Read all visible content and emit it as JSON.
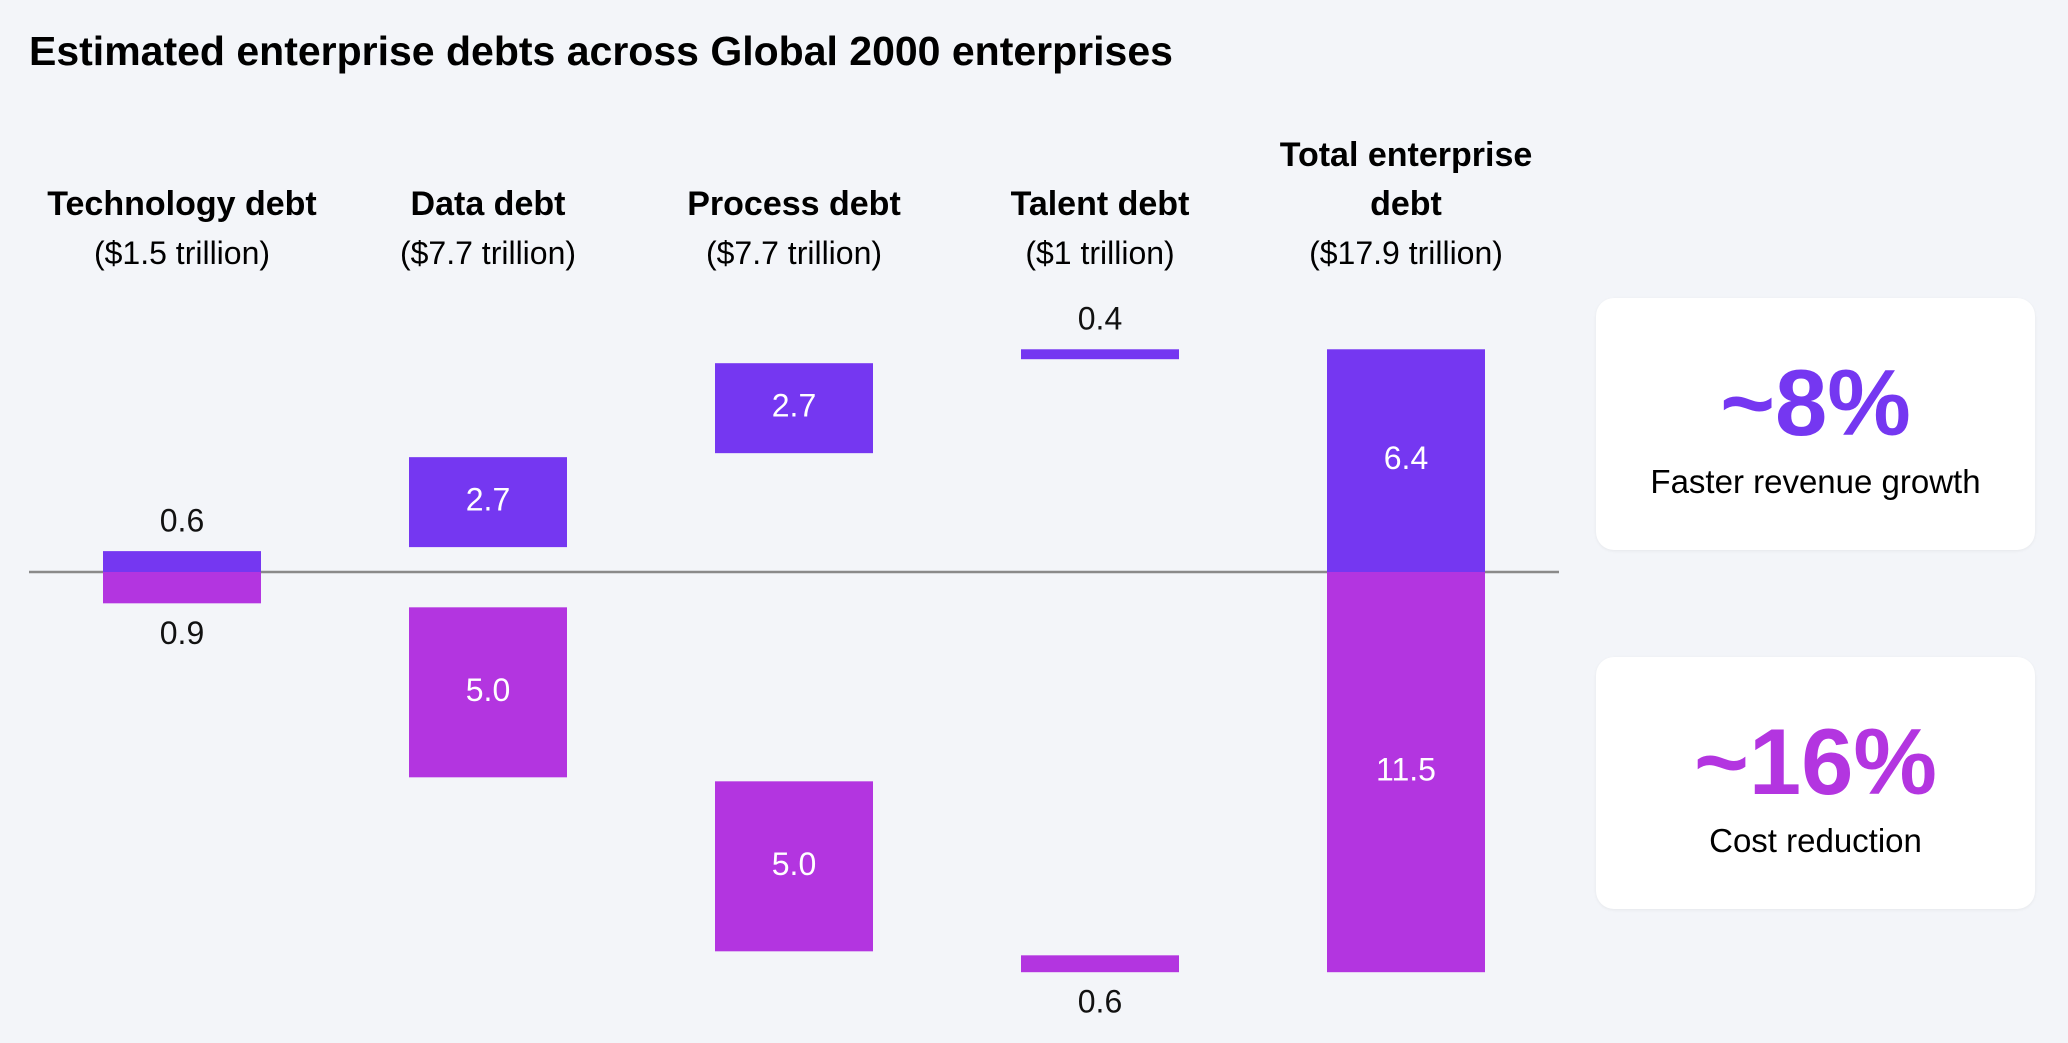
{
  "chart_data": {
    "type": "waterfall",
    "title": "Estimated enterprise debts across Global 2000 enterprises",
    "categories": [
      "Technology debt",
      "Data debt",
      "Process debt",
      "Talent debt",
      "Total enterprise debt"
    ],
    "category_subtitles": [
      "($1.5 trillion)",
      "($7.7 trillion)",
      "($7.7 trillion)",
      "($1 trillion)",
      "($17.9 trillion)"
    ],
    "series": [
      {
        "color": "#7537f1",
        "values": [
          0.6,
          2.7,
          2.7,
          0.4,
          6.4
        ],
        "value_labels": [
          "0.6",
          "2.7",
          "2.7",
          "0.4",
          "6.4"
        ]
      },
      {
        "color": "#b335e0",
        "values": [
          0.9,
          5.0,
          5.0,
          0.6,
          11.5
        ],
        "value_labels": [
          "0.9",
          "5.0",
          "5.0",
          "0.6",
          "11.5"
        ]
      }
    ],
    "callouts": [
      {
        "value": "~8%",
        "label": "Faster revenue growth",
        "color": "#7537f1"
      },
      {
        "value": "~16%",
        "label": "Cost reduction",
        "color": "#b335e0"
      }
    ]
  }
}
